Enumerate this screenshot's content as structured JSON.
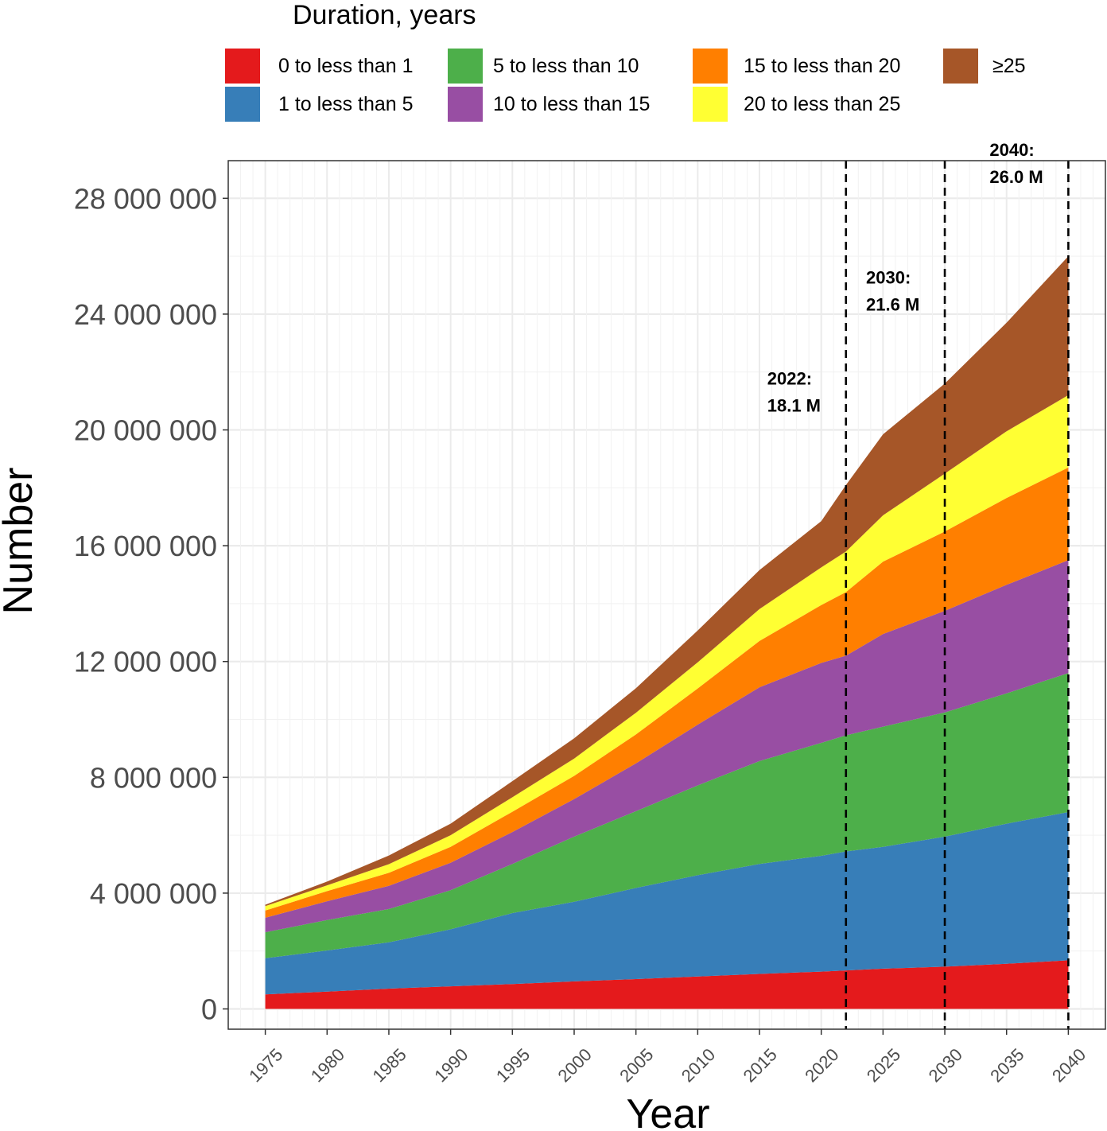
{
  "chart_data": {
    "type": "area",
    "stacked": true,
    "title": "",
    "xlabel": "Year",
    "ylabel": "Number",
    "xlim": [
      1972,
      2043
    ],
    "ylim": [
      -700000,
      29300000
    ],
    "grid": true,
    "x_ticks": [
      1975,
      1980,
      1985,
      1990,
      1995,
      2000,
      2005,
      2010,
      2015,
      2020,
      2025,
      2030,
      2035,
      2040
    ],
    "y_ticks": [
      0,
      4000000,
      8000000,
      12000000,
      16000000,
      20000000,
      24000000,
      28000000
    ],
    "y_tick_labels": [
      "0",
      "4 000 000",
      "8 000 000",
      "12 000 000",
      "16 000 000",
      "20 000 000",
      "24 000 000",
      "28 000 000"
    ],
    "legend": {
      "title": "Duration, years",
      "position": "top"
    },
    "x": [
      1975,
      1980,
      1985,
      1990,
      1995,
      2000,
      2005,
      2010,
      2015,
      2020,
      2022,
      2025,
      2030,
      2035,
      2040
    ],
    "series": [
      {
        "name": "0  to less than 1",
        "color": "#E41A1C",
        "values": [
          500000,
          600000,
          700000,
          780000,
          860000,
          950000,
          1030000,
          1120000,
          1210000,
          1290000,
          1330000,
          1390000,
          1460000,
          1560000,
          1680000
        ]
      },
      {
        "name": "1 to less than 5",
        "color": "#377EB8",
        "values": [
          1250000,
          1420000,
          1600000,
          1970000,
          2450000,
          2750000,
          3150000,
          3500000,
          3800000,
          4000000,
          4110000,
          4210000,
          4490000,
          4840000,
          5120000
        ]
      },
      {
        "name": "5  to less than 10",
        "color": "#4DAF4A",
        "values": [
          900000,
          1050000,
          1150000,
          1350000,
          1700000,
          2250000,
          2650000,
          3100000,
          3550000,
          3900000,
          4010000,
          4150000,
          4290000,
          4500000,
          4800000
        ]
      },
      {
        "name": "10 to less than 15",
        "color": "#984EA3",
        "values": [
          500000,
          650000,
          800000,
          950000,
          1100000,
          1300000,
          1650000,
          2100000,
          2550000,
          2760000,
          2750000,
          3200000,
          3510000,
          3750000,
          3900000
        ]
      },
      {
        "name": "15 to less than 20",
        "color": "#FF7F00",
        "values": [
          250000,
          350000,
          450000,
          550000,
          700000,
          800000,
          1000000,
          1250000,
          1600000,
          2000000,
          2200000,
          2500000,
          2740000,
          3000000,
          3200000
        ]
      },
      {
        "name": "20 to less than 25",
        "color": "#FFFF33",
        "values": [
          150000,
          200000,
          300000,
          400000,
          500000,
          600000,
          750000,
          900000,
          1100000,
          1300000,
          1400000,
          1600000,
          2000000,
          2300000,
          2500000
        ]
      },
      {
        "name": "≥25",
        "color": "#A65628",
        "values": [
          50000,
          130000,
          300000,
          400000,
          560000,
          700000,
          850000,
          1100000,
          1350000,
          1600000,
          2300000,
          2800000,
          3110000,
          3750000,
          4800000
        ]
      }
    ],
    "reference_lines": [
      {
        "x": 2022,
        "label_year": "2022:",
        "label_value": "18.1 M"
      },
      {
        "x": 2030,
        "label_year": "2030:",
        "label_value": "21.6 M"
      },
      {
        "x": 2040,
        "label_year": "2040:",
        "label_value": "26.0 M"
      }
    ]
  }
}
